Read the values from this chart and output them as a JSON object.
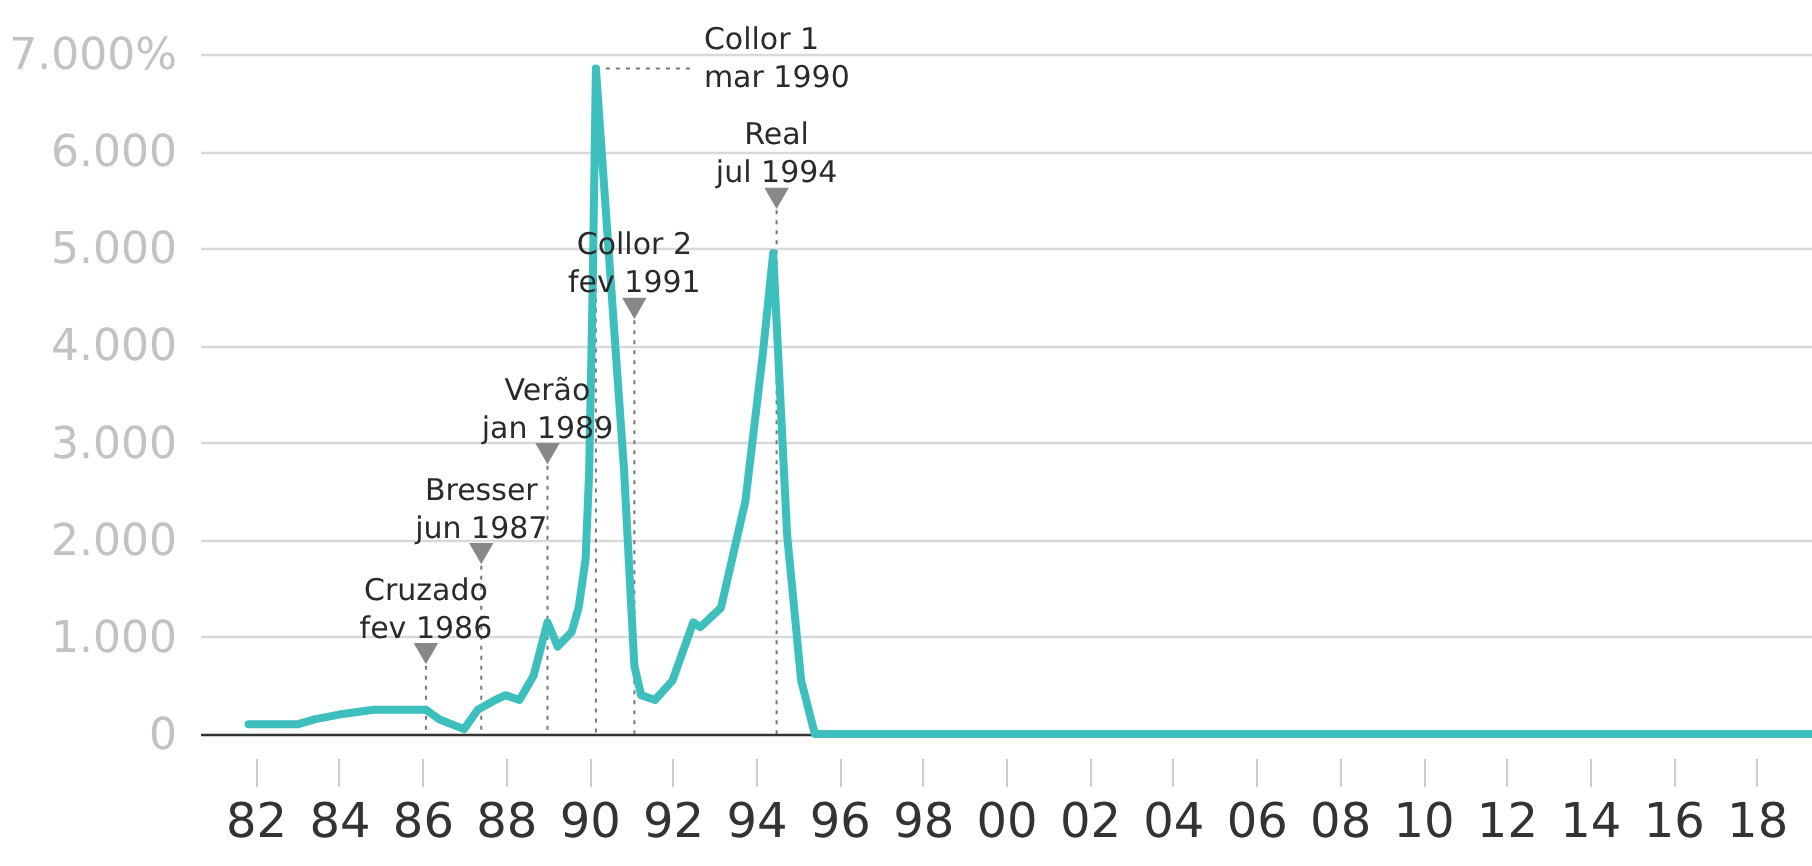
{
  "chart_data": {
    "type": "line",
    "x": [
      "1981-11",
      "1983-01",
      "1983-06",
      "1984-01",
      "1984-11",
      "1985-03",
      "1985-07",
      "1986-02",
      "1986-06",
      "1987-01",
      "1987-05",
      "1987-10",
      "1988-01",
      "1988-05",
      "1988-09",
      "1989-01",
      "1989-04",
      "1989-08",
      "1989-10",
      "1989-12",
      "1990-01",
      "1990-02",
      "1990-03",
      "1990-07",
      "1990-11",
      "1991-02",
      "1991-04",
      "1991-08",
      "1992-01",
      "1992-07",
      "1992-09",
      "1993-03",
      "1993-10",
      "1994-03",
      "1994-06",
      "1994-10",
      "1995-02",
      "1995-06",
      "1996-06",
      "2000-01",
      "2003-05",
      "2006-06",
      "2010-01",
      "2016-01",
      "2019-05"
    ],
    "series": [
      {
        "color": "#3cbfbd",
        "values": [
          100,
          100,
          150,
          200,
          250,
          250,
          250,
          250,
          150,
          50,
          250,
          350,
          400,
          350,
          600,
          1150,
          900,
          1050,
          1300,
          1800,
          2700,
          4600,
          6850,
          4800,
          2750,
          700,
          400,
          350,
          550,
          1150,
          1100,
          1300,
          2400,
          3900,
          4950,
          2050,
          550,
          0,
          0,
          0,
          0,
          0,
          0,
          0,
          0
        ]
      }
    ],
    "xlim": [
      "1980-09",
      "2019-05"
    ],
    "xticks": [
      {
        "value": "1982",
        "label": "82"
      },
      {
        "value": "1984",
        "label": "84"
      },
      {
        "value": "1986",
        "label": "86"
      },
      {
        "value": "1988",
        "label": "88"
      },
      {
        "value": "1990",
        "label": "90"
      },
      {
        "value": "1992",
        "label": "92"
      },
      {
        "value": "1994",
        "label": "94"
      },
      {
        "value": "1996",
        "label": "96"
      },
      {
        "value": "1998",
        "label": "98"
      },
      {
        "value": "2000",
        "label": "00"
      },
      {
        "value": "2002",
        "label": "02"
      },
      {
        "value": "2004",
        "label": "04"
      },
      {
        "value": "2006",
        "label": "06"
      },
      {
        "value": "2008",
        "label": "08"
      },
      {
        "value": "2010",
        "label": "10"
      },
      {
        "value": "2012",
        "label": "12"
      },
      {
        "value": "2014",
        "label": "14"
      },
      {
        "value": "2016",
        "label": "16"
      },
      {
        "value": "2018",
        "label": "18"
      }
    ],
    "ylim": [
      0,
      7000
    ],
    "yticks": [
      0,
      {
        "value": 1000,
        "label": "1.000"
      },
      {
        "value": 2000,
        "label": "2.000"
      },
      {
        "value": 3000,
        "label": "3.000"
      },
      {
        "value": 4000,
        "label": "4.000"
      },
      {
        "value": 5000,
        "label": "5.000"
      },
      {
        "value": 6000,
        "label": "6.000"
      },
      {
        "value": 7000,
        "label": "7.000%"
      }
    ],
    "grid": "y",
    "ref_lines": [
      {
        "axis": "x",
        "value": "1986-02",
        "label": "Cruzado\nfev 1986",
        "line_style": "dotted"
      },
      {
        "axis": "x",
        "value": "1987-06",
        "label": "Bresser\njun 1987",
        "line_style": "dotted"
      },
      {
        "axis": "x",
        "value": "1989-01",
        "label": "Verão\njan 1989",
        "line_style": "dotted"
      },
      {
        "axis": "x",
        "value": "1990-03",
        "label": "Collor 1\nmar 1990",
        "line_style": "dotted"
      },
      {
        "axis": "x",
        "value": "1991-02",
        "label": "Collor 2\nfev 1991",
        "line_style": "dotted"
      },
      {
        "axis": "x",
        "value": "1994-07",
        "label": "Real\njul 1994",
        "line_style": "dotted"
      }
    ]
  }
}
